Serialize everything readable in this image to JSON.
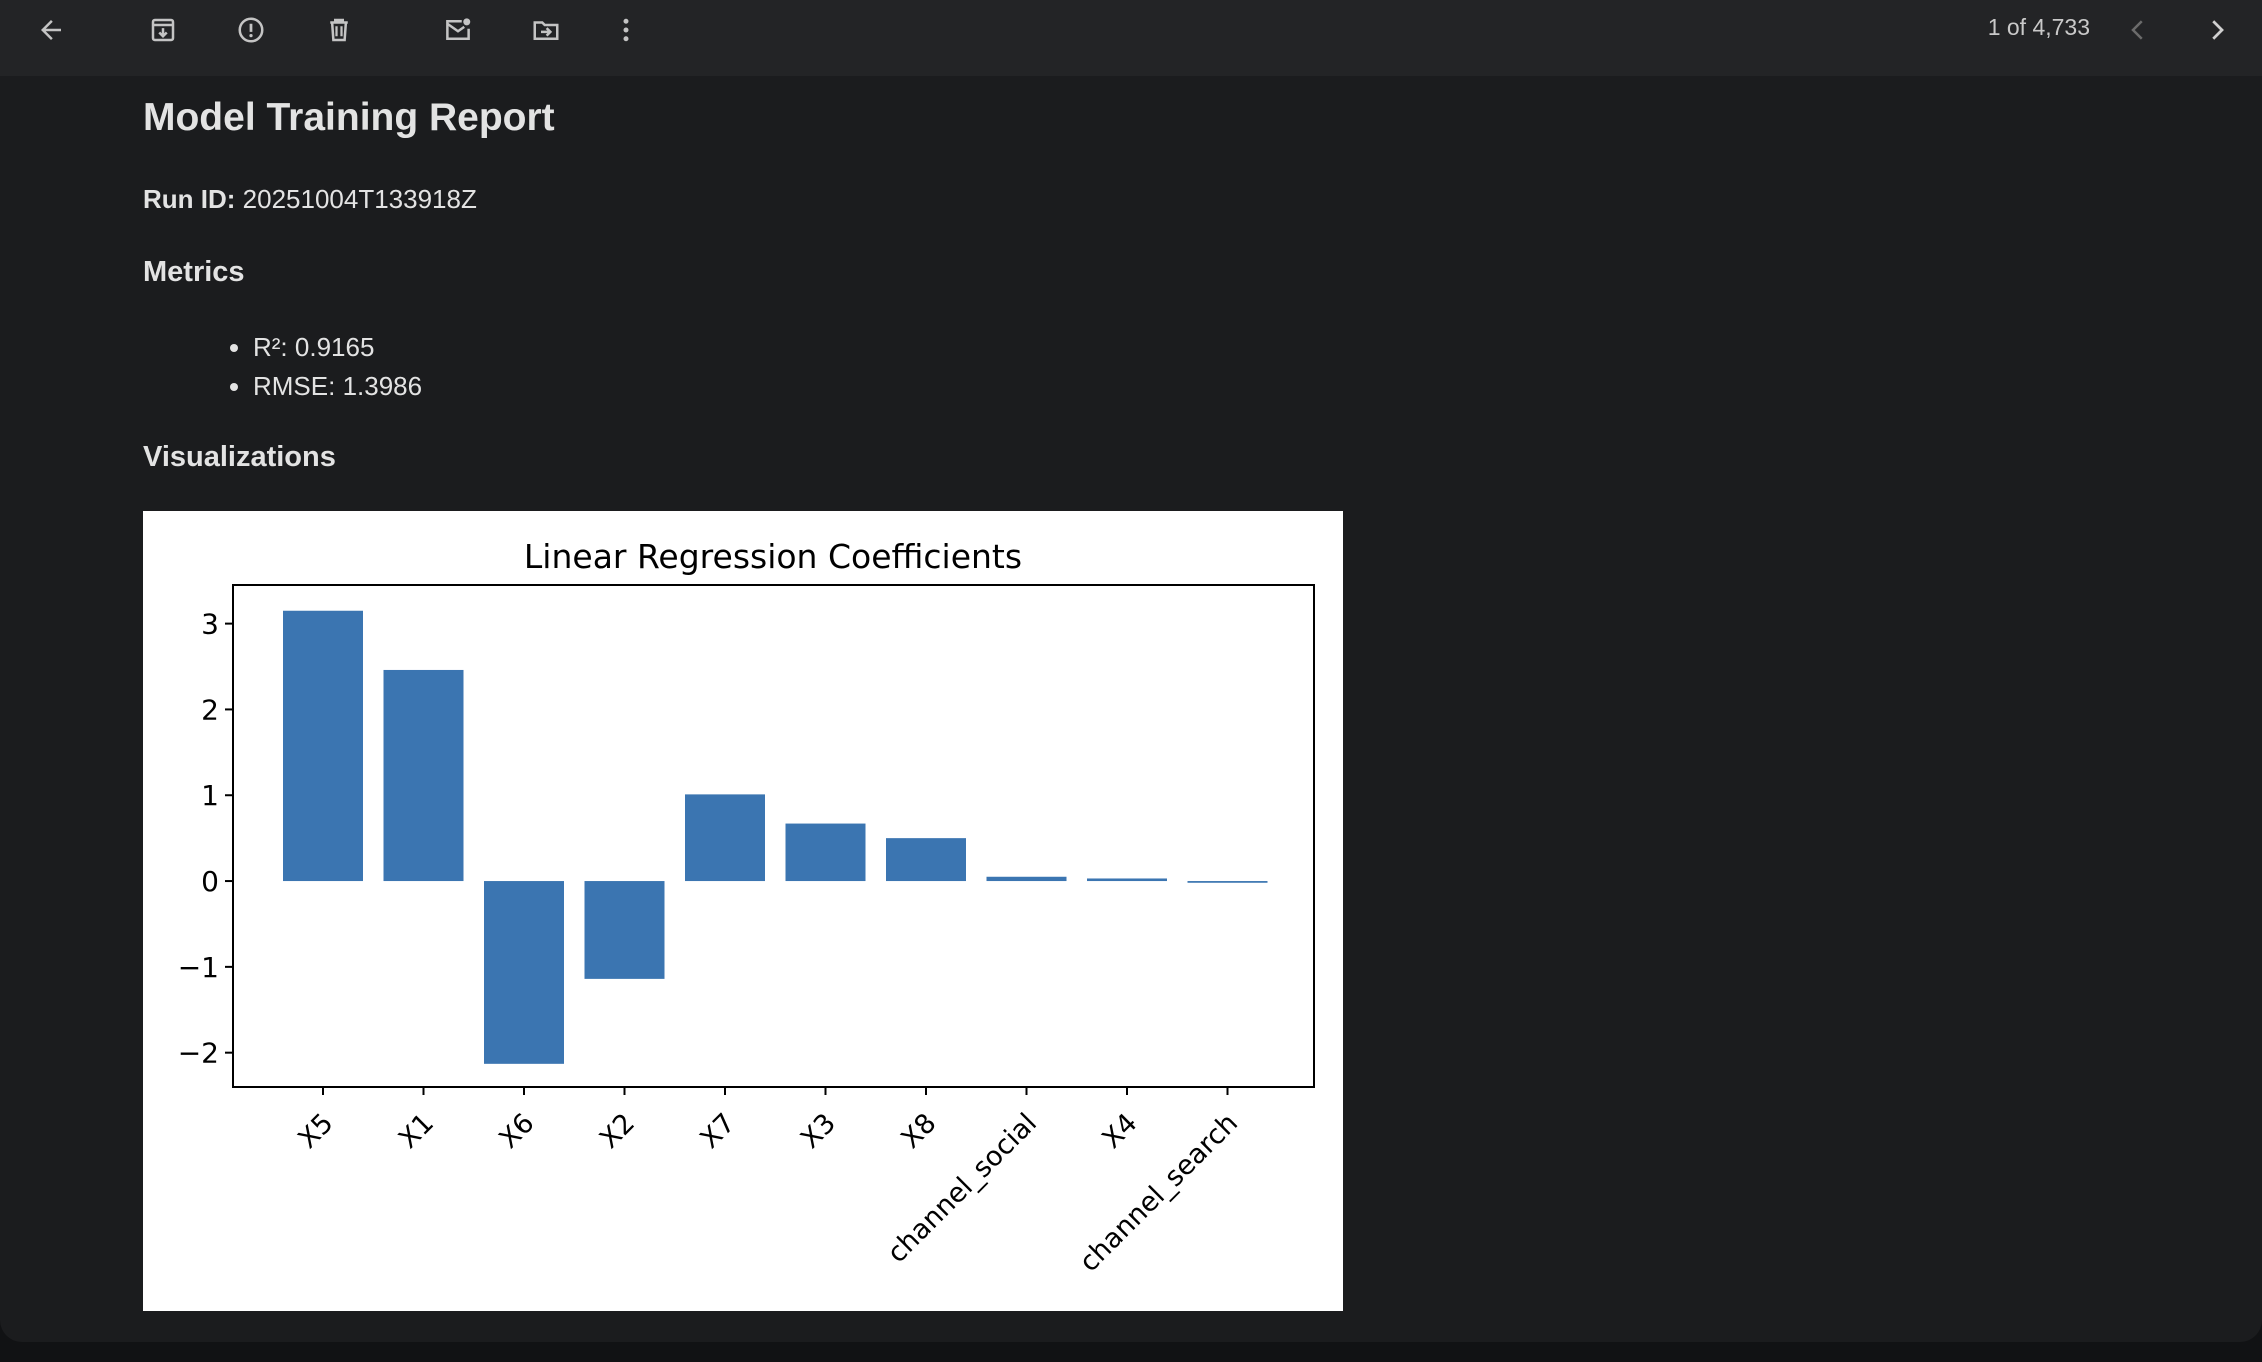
{
  "toolbar": {
    "buttons": [
      {
        "name": "back-button",
        "icon": "arrow-left-icon"
      },
      {
        "name": "archive-button",
        "icon": "archive-icon"
      },
      {
        "name": "report-spam-button",
        "icon": "report-icon"
      },
      {
        "name": "delete-button",
        "icon": "trash-icon"
      },
      {
        "name": "mark-unread-button",
        "icon": "mail-unread-icon"
      },
      {
        "name": "move-to-button",
        "icon": "folder-move-icon"
      },
      {
        "name": "more-button",
        "icon": "more-vert-icon"
      }
    ],
    "pager_text": "1 of 4,733",
    "prev_icon": "chevron-left-icon",
    "next_icon": "chevron-right-icon"
  },
  "report": {
    "title": "Model Training Report",
    "run_id_label": "Run ID:",
    "run_id_value": "20251004T133918Z",
    "metrics_heading": "Metrics",
    "metrics": [
      "R²: 0.9165",
      "RMSE: 1.3986"
    ],
    "visualizations_heading": "Visualizations"
  },
  "chart_data": {
    "type": "bar",
    "title": "Linear Regression Coefficients",
    "categories": [
      "X5",
      "X1",
      "X6",
      "X2",
      "X7",
      "X3",
      "X8",
      "channel_social",
      "X4",
      "channel_search"
    ],
    "values": [
      3.15,
      2.46,
      -2.13,
      -1.14,
      1.01,
      0.67,
      0.5,
      0.05,
      0.03,
      -0.02
    ],
    "ylim": [
      -2.4,
      3.45
    ],
    "yticks": [
      3,
      2,
      1,
      0,
      -1,
      -2
    ],
    "ytick_labels": [
      "3",
      "2",
      "1",
      "0",
      "−1",
      "−2"
    ],
    "bar_color": "#3b75b1",
    "grid": false
  }
}
